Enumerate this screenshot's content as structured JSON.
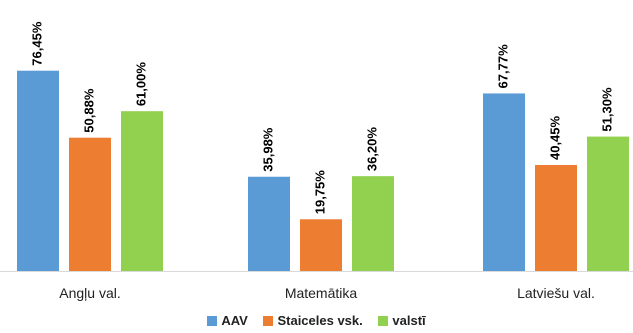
{
  "chart_data": {
    "type": "bar",
    "categories": [
      "Angļu val.",
      "Matemātika",
      "Latviešu val."
    ],
    "series": [
      {
        "name": "AAV",
        "color": "#5B9BD5",
        "values": [
          76.45,
          35.98,
          67.77
        ],
        "labels": [
          "76,45%",
          "35,98%",
          "67,77%"
        ]
      },
      {
        "name": "Staiceles vsk.",
        "color": "#ED7D31",
        "values": [
          50.88,
          19.75,
          40.45
        ],
        "labels": [
          "50,88%",
          "19,75%",
          "40,45%"
        ]
      },
      {
        "name": "valstī",
        "color": "#92D050",
        "values": [
          61.0,
          36.2,
          51.3
        ],
        "labels": [
          "61,00%",
          "36,20%",
          "51,30%"
        ]
      }
    ],
    "ylim": [
      0,
      100
    ],
    "grid": false,
    "legend_position": "bottom"
  }
}
